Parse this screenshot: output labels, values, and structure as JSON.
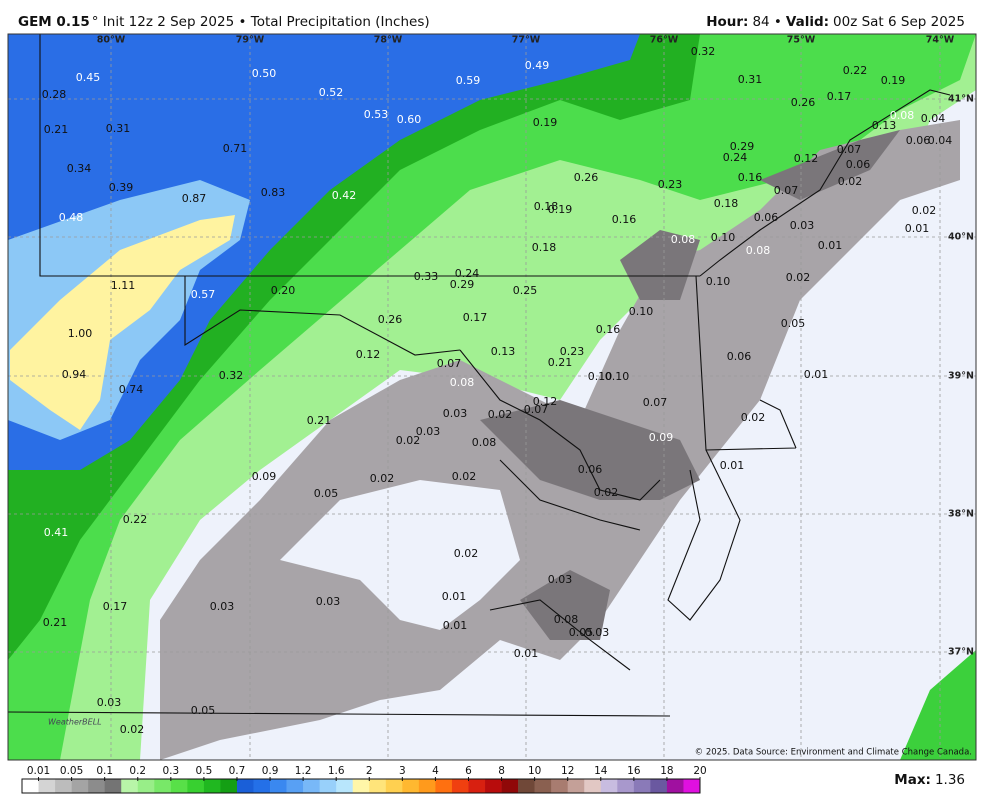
{
  "header": {
    "model": "GEM 0.15",
    "title": "° Init 12z 2 Sep 2025 • Total Precipitation (Inches)",
    "hour_label": "Hour:",
    "hour": "84 •",
    "valid_label": "Valid:",
    "valid": "00z Sat 6 Sep 2025"
  },
  "map": {
    "longitudes": [
      "80°W",
      "79°W",
      "78°W",
      "77°W",
      "76°W",
      "75°W",
      "74°W"
    ],
    "latitudes": [
      "41°N",
      "40°N",
      "39°N",
      "38°N",
      "37°N"
    ],
    "values": [
      "0.45",
      "0.28",
      "0.21",
      "0.31",
      "0.34",
      "0.39",
      "0.48",
      "0.50",
      "0.52",
      "0.53",
      "0.60",
      "0.59",
      "0.49",
      "0.32",
      "0.31",
      "0.22",
      "0.19",
      "0.26",
      "0.17",
      "0.13",
      "0.08",
      "0.04",
      "0.06",
      "0.04",
      "0.19",
      "0.71",
      "0.87",
      "0.83",
      "0.42",
      "0.29",
      "0.24",
      "0.12",
      "0.07",
      "0.06",
      "0.26",
      "0.23",
      "0.16",
      "0.02",
      "0.07",
      "0.18",
      "0.18",
      "0.19",
      "0.16",
      "0.06",
      "0.03",
      "0.02",
      "0.01",
      "0.08",
      "0.10",
      "0.08",
      "0.01",
      "0.18",
      "1.11",
      "0.57",
      "0.20",
      "0.33",
      "0.24",
      "0.29",
      "0.25",
      "0.10",
      "0.02",
      "0.26",
      "0.17",
      "0.10",
      "0.16",
      "0.05",
      "1.00",
      "0.12",
      "0.13",
      "0.23",
      "0.21",
      "0.06",
      "0.94",
      "0.32",
      "0.07",
      "0.08",
      "0.10",
      "0.10",
      "0.01",
      "0.74",
      "0.12",
      "0.07",
      "0.07",
      "0.03",
      "0.02",
      "0.03",
      "0.02",
      "0.08",
      "0.21",
      "0.02",
      "0.09",
      "0.01",
      "0.06",
      "0.09",
      "0.02",
      "0.02",
      "0.05",
      "0.02",
      "0.41",
      "0.22",
      "0.02",
      "0.03",
      "0.01",
      "0.03",
      "0.03",
      "0.17",
      "0.01",
      "0.08",
      "0.03",
      "0.05",
      "0.21",
      "0.01",
      "0.03",
      "0.05",
      "0.02"
    ],
    "credit": "© 2025. Data Source: Environment and Climate Change Canada.",
    "logo": "WeatherBELL"
  },
  "colorbar": {
    "labels": [
      "0.01",
      "0.05",
      "0.1",
      "0.2",
      "0.3",
      "0.5",
      "0.7",
      "0.9",
      "1.2",
      "1.6",
      "2",
      "3",
      "4",
      "6",
      "8",
      "10",
      "12",
      "14",
      "16",
      "18",
      "20"
    ],
    "colors": [
      "#ffffff",
      "#d4d4d4",
      "#bcbcbc",
      "#a4a4a4",
      "#8c8c8c",
      "#747474",
      "#b8f5a8",
      "#98ee88",
      "#78e868",
      "#58e048",
      "#38d030",
      "#20b820",
      "#149f14",
      "#1a5fd8",
      "#2470e8",
      "#3a88f0",
      "#58a0f4",
      "#78b8f8",
      "#98d0fa",
      "#b8e6fc",
      "#fff6a8",
      "#ffe47a",
      "#ffd050",
      "#ffb830",
      "#ff9a1c",
      "#ff7010",
      "#f04010",
      "#d82010",
      "#b80c0c",
      "#900808",
      "#704838",
      "#8a6050",
      "#a87c70",
      "#c4a098",
      "#e2c8c4",
      "#c8bce0",
      "#a898cc",
      "#8a7ab8",
      "#6a58a0",
      "#a010a0",
      "#e010e0"
    ]
  },
  "max": {
    "label": "Max:",
    "value": "1.36"
  }
}
